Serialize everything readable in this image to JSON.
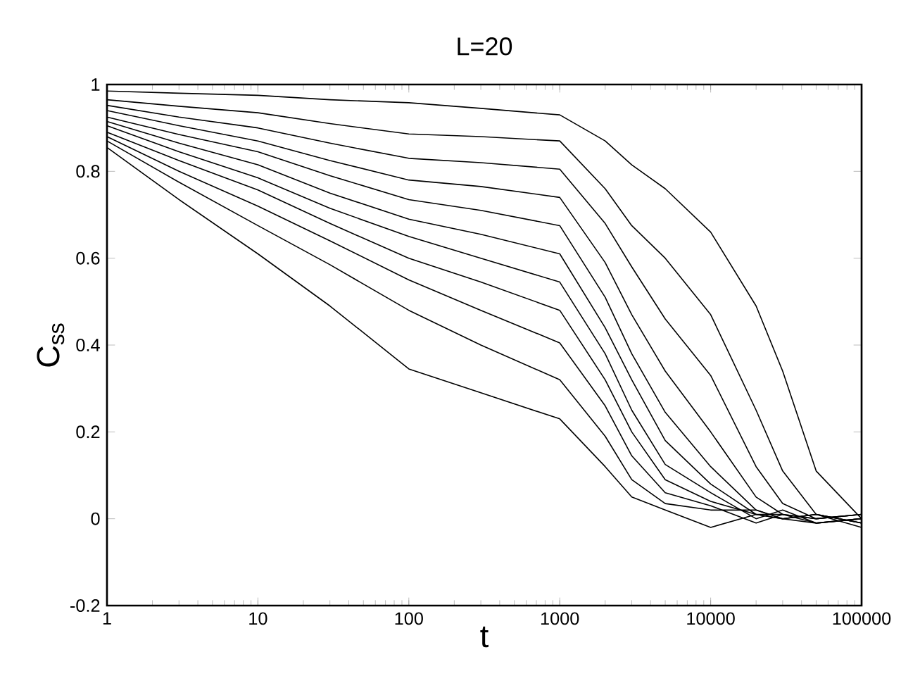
{
  "chart_data": {
    "type": "line",
    "title": "L=20",
    "xlabel": "t",
    "ylabel": "C$_{ss}$",
    "log": "x",
    "xlim": [
      1,
      100000
    ],
    "ylim": [
      -0.2,
      1
    ],
    "xticks": [
      1,
      10,
      100,
      1000,
      10000,
      100000
    ],
    "yticks": [
      -0.2,
      0,
      0.2,
      0.4,
      0.6,
      0.8,
      1
    ],
    "x": [
      1,
      3,
      10,
      30,
      100,
      300,
      1000,
      2000,
      3000,
      5000,
      10000,
      20000,
      30000,
      50000,
      100000
    ],
    "series": [
      {
        "color": "#000000",
        "values": [
          0.985,
          0.98,
          0.975,
          0.965,
          0.958,
          0.945,
          0.93,
          0.87,
          0.815,
          0.76,
          0.66,
          0.49,
          0.34,
          0.11,
          0.0
        ]
      },
      {
        "color": "#000000",
        "values": [
          0.965,
          0.95,
          0.935,
          0.91,
          0.886,
          0.88,
          0.87,
          0.76,
          0.675,
          0.6,
          0.47,
          0.25,
          0.11,
          0.01,
          -0.01
        ]
      },
      {
        "color": "#000000",
        "values": [
          0.952,
          0.925,
          0.9,
          0.865,
          0.83,
          0.82,
          0.805,
          0.68,
          0.58,
          0.46,
          0.33,
          0.12,
          0.035,
          0.0,
          0.01
        ]
      },
      {
        "color": "#000000",
        "values": [
          0.94,
          0.905,
          0.87,
          0.825,
          0.78,
          0.765,
          0.74,
          0.59,
          0.47,
          0.34,
          0.2,
          0.05,
          0.01,
          -0.01,
          0.0
        ]
      },
      {
        "color": "#000000",
        "values": [
          0.925,
          0.885,
          0.845,
          0.79,
          0.735,
          0.71,
          0.675,
          0.51,
          0.38,
          0.245,
          0.12,
          0.02,
          0.0,
          0.01,
          -0.02
        ]
      },
      {
        "color": "#000000",
        "values": [
          0.915,
          0.865,
          0.815,
          0.75,
          0.69,
          0.655,
          0.61,
          0.44,
          0.32,
          0.18,
          0.08,
          0.01,
          0.01,
          0.0,
          0.01
        ]
      },
      {
        "color": "#000000",
        "values": [
          0.905,
          0.845,
          0.785,
          0.715,
          0.65,
          0.6,
          0.545,
          0.38,
          0.25,
          0.125,
          0.06,
          0.0,
          0.02,
          -0.01,
          0.0
        ]
      },
      {
        "color": "#000000",
        "values": [
          0.89,
          0.825,
          0.757,
          0.68,
          0.6,
          0.545,
          0.48,
          0.32,
          0.2,
          0.09,
          0.04,
          0.01,
          0.0,
          0.01,
          -0.01
        ]
      },
      {
        "color": "#000000",
        "values": [
          0.88,
          0.8,
          0.72,
          0.64,
          0.55,
          0.48,
          0.405,
          0.26,
          0.145,
          0.06,
          0.03,
          -0.01,
          0.01,
          0.0,
          0.01
        ]
      },
      {
        "color": "#000000",
        "values": [
          0.87,
          0.775,
          0.675,
          0.585,
          0.48,
          0.4,
          0.32,
          0.19,
          0.09,
          0.035,
          0.02,
          0.02,
          0.0,
          0.01,
          -0.01
        ]
      },
      {
        "color": "#000000",
        "values": [
          0.855,
          0.735,
          0.61,
          0.49,
          0.345,
          0.29,
          0.23,
          0.12,
          0.05,
          0.02,
          -0.02,
          0.01,
          0.0,
          -0.01,
          0.0
        ]
      }
    ]
  }
}
